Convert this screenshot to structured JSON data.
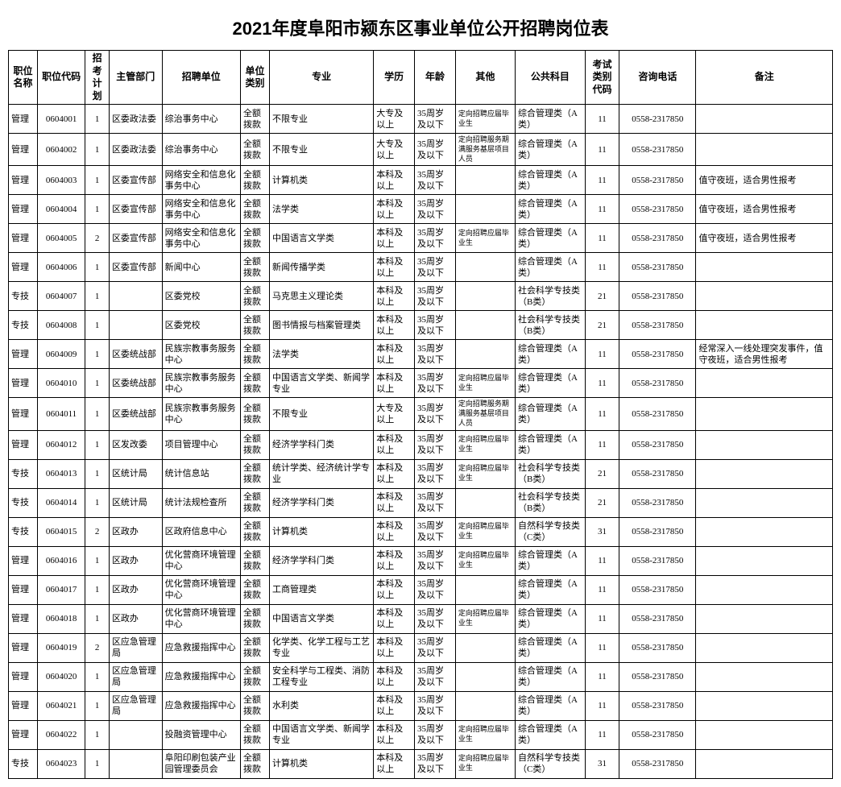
{
  "title": "2021年度阜阳市颍东区事业单位公开招聘岗位表",
  "columns": [
    "职位名称",
    "职位代码",
    "招考计划",
    "主管部门",
    "招聘单位",
    "单位类别",
    "专业",
    "学历",
    "年龄",
    "其他",
    "公共科目",
    "考试类别代码",
    "咨询电话",
    "备注"
  ],
  "col_widths": {
    "职位名称": 34,
    "职位代码": 56,
    "招考计划": 28,
    "主管部门": 62,
    "招聘单位": 92,
    "单位类别": 34,
    "专业": 122,
    "学历": 48,
    "年龄": 48,
    "其他": 70,
    "公共科目": 82,
    "考试类别代码": 40,
    "咨询电话": 90,
    "备注": 160
  },
  "rows": [
    {
      "name": "管理",
      "code": "0604001",
      "plan": "1",
      "dept": "区委政法委",
      "unit": "综治事务中心",
      "type": "全额拨款",
      "major": "不限专业",
      "edu": "大专及以上",
      "age": "35周岁及以下",
      "other": "定向招聘应届毕业生",
      "subj": "综合管理类（A类）",
      "exam": "11",
      "phone": "0558-2317850",
      "remark": ""
    },
    {
      "name": "管理",
      "code": "0604002",
      "plan": "1",
      "dept": "区委政法委",
      "unit": "综治事务中心",
      "type": "全额拨款",
      "major": "不限专业",
      "edu": "大专及以上",
      "age": "35周岁及以下",
      "other": "定向招聘服务期满服务基层项目人员",
      "subj": "综合管理类（A类）",
      "exam": "11",
      "phone": "0558-2317850",
      "remark": ""
    },
    {
      "name": "管理",
      "code": "0604003",
      "plan": "1",
      "dept": "区委宣传部",
      "unit": "网络安全和信息化事务中心",
      "type": "全额拨款",
      "major": "计算机类",
      "edu": "本科及以上",
      "age": "35周岁及以下",
      "other": "",
      "subj": "综合管理类（A类）",
      "exam": "11",
      "phone": "0558-2317850",
      "remark": "值守夜班，适合男性报考"
    },
    {
      "name": "管理",
      "code": "0604004",
      "plan": "1",
      "dept": "区委宣传部",
      "unit": "网络安全和信息化事务中心",
      "type": "全额拨款",
      "major": "法学类",
      "edu": "本科及以上",
      "age": "35周岁及以下",
      "other": "",
      "subj": "综合管理类（A类）",
      "exam": "11",
      "phone": "0558-2317850",
      "remark": "值守夜班，适合男性报考"
    },
    {
      "name": "管理",
      "code": "0604005",
      "plan": "2",
      "dept": "区委宣传部",
      "unit": "网络安全和信息化事务中心",
      "type": "全额拨款",
      "major": "中国语言文学类",
      "edu": "本科及以上",
      "age": "35周岁及以下",
      "other": "定向招聘应届毕业生",
      "subj": "综合管理类（A类）",
      "exam": "11",
      "phone": "0558-2317850",
      "remark": "值守夜班，适合男性报考"
    },
    {
      "name": "管理",
      "code": "0604006",
      "plan": "1",
      "dept": "区委宣传部",
      "unit": "新闻中心",
      "type": "全额拨款",
      "major": "新闻传播学类",
      "edu": "本科及以上",
      "age": "35周岁及以下",
      "other": "",
      "subj": "综合管理类（A类）",
      "exam": "11",
      "phone": "0558-2317850",
      "remark": ""
    },
    {
      "name": "专技",
      "code": "0604007",
      "plan": "1",
      "dept": "",
      "unit": "区委党校",
      "type": "全额拨款",
      "major": "马克思主义理论类",
      "edu": "本科及以上",
      "age": "35周岁及以下",
      "other": "",
      "subj": "社会科学专技类（B类）",
      "exam": "21",
      "phone": "0558-2317850",
      "remark": ""
    },
    {
      "name": "专技",
      "code": "0604008",
      "plan": "1",
      "dept": "",
      "unit": "区委党校",
      "type": "全额拨款",
      "major": "图书情报与档案管理类",
      "edu": "本科及以上",
      "age": "35周岁及以下",
      "other": "",
      "subj": "社会科学专技类（B类）",
      "exam": "21",
      "phone": "0558-2317850",
      "remark": ""
    },
    {
      "name": "管理",
      "code": "0604009",
      "plan": "1",
      "dept": "区委统战部",
      "unit": "民族宗教事务服务中心",
      "type": "全额拨款",
      "major": "法学类",
      "edu": "本科及以上",
      "age": "35周岁及以下",
      "other": "",
      "subj": "综合管理类（A类）",
      "exam": "11",
      "phone": "0558-2317850",
      "remark": "经常深入一线处理突发事件，值守夜班，适合男性报考"
    },
    {
      "name": "管理",
      "code": "0604010",
      "plan": "1",
      "dept": "区委统战部",
      "unit": "民族宗教事务服务中心",
      "type": "全额拨款",
      "major": "中国语言文学类、新闻学专业",
      "edu": "本科及以上",
      "age": "35周岁及以下",
      "other": "定向招聘应届毕业生",
      "subj": "综合管理类（A类）",
      "exam": "11",
      "phone": "0558-2317850",
      "remark": ""
    },
    {
      "name": "管理",
      "code": "0604011",
      "plan": "1",
      "dept": "区委统战部",
      "unit": "民族宗教事务服务中心",
      "type": "全额拨款",
      "major": "不限专业",
      "edu": "大专及以上",
      "age": "35周岁及以下",
      "other": "定向招聘服务期满服务基层项目人员",
      "subj": "综合管理类（A类）",
      "exam": "11",
      "phone": "0558-2317850",
      "remark": ""
    },
    {
      "name": "管理",
      "code": "0604012",
      "plan": "1",
      "dept": "区发改委",
      "unit": "项目管理中心",
      "type": "全额拨款",
      "major": "经济学学科门类",
      "edu": "本科及以上",
      "age": "35周岁及以下",
      "other": "定向招聘应届毕业生",
      "subj": "综合管理类（A类）",
      "exam": "11",
      "phone": "0558-2317850",
      "remark": ""
    },
    {
      "name": "专技",
      "code": "0604013",
      "plan": "1",
      "dept": "区统计局",
      "unit": "统计信息站",
      "type": "全额拨款",
      "major": "统计学类、经济统计学专业",
      "edu": "本科及以上",
      "age": "35周岁及以下",
      "other": "定向招聘应届毕业生",
      "subj": "社会科学专技类（B类）",
      "exam": "21",
      "phone": "0558-2317850",
      "remark": ""
    },
    {
      "name": "专技",
      "code": "0604014",
      "plan": "1",
      "dept": "区统计局",
      "unit": "统计法规检查所",
      "type": "全额拨款",
      "major": "经济学学科门类",
      "edu": "本科及以上",
      "age": "35周岁及以下",
      "other": "",
      "subj": "社会科学专技类（B类）",
      "exam": "21",
      "phone": "0558-2317850",
      "remark": ""
    },
    {
      "name": "专技",
      "code": "0604015",
      "plan": "2",
      "dept": "区政办",
      "unit": "区政府信息中心",
      "type": "全额拨款",
      "major": "计算机类",
      "edu": "本科及以上",
      "age": "35周岁及以下",
      "other": "定向招聘应届毕业生",
      "subj": "自然科学专技类（C类）",
      "exam": "31",
      "phone": "0558-2317850",
      "remark": ""
    },
    {
      "name": "管理",
      "code": "0604016",
      "plan": "1",
      "dept": "区政办",
      "unit": "优化营商环境管理中心",
      "type": "全额拨款",
      "major": "经济学学科门类",
      "edu": "本科及以上",
      "age": "35周岁及以下",
      "other": "定向招聘应届毕业生",
      "subj": "综合管理类（A类）",
      "exam": "11",
      "phone": "0558-2317850",
      "remark": ""
    },
    {
      "name": "管理",
      "code": "0604017",
      "plan": "1",
      "dept": "区政办",
      "unit": "优化营商环境管理中心",
      "type": "全额拨款",
      "major": "工商管理类",
      "edu": "本科及以上",
      "age": "35周岁及以下",
      "other": "",
      "subj": "综合管理类（A类）",
      "exam": "11",
      "phone": "0558-2317850",
      "remark": ""
    },
    {
      "name": "管理",
      "code": "0604018",
      "plan": "1",
      "dept": "区政办",
      "unit": "优化营商环境管理中心",
      "type": "全额拨款",
      "major": "中国语言文学类",
      "edu": "本科及以上",
      "age": "35周岁及以下",
      "other": "定向招聘应届毕业生",
      "subj": "综合管理类（A类）",
      "exam": "11",
      "phone": "0558-2317850",
      "remark": ""
    },
    {
      "name": "管理",
      "code": "0604019",
      "plan": "2",
      "dept": "区应急管理局",
      "unit": "应急救援指挥中心",
      "type": "全额拨款",
      "major": "化学类、化学工程与工艺专业",
      "edu": "本科及以上",
      "age": "35周岁及以下",
      "other": "",
      "subj": "综合管理类（A类）",
      "exam": "11",
      "phone": "0558-2317850",
      "remark": ""
    },
    {
      "name": "管理",
      "code": "0604020",
      "plan": "1",
      "dept": "区应急管理局",
      "unit": "应急救援指挥中心",
      "type": "全额拨款",
      "major": "安全科学与工程类、消防工程专业",
      "edu": "本科及以上",
      "age": "35周岁及以下",
      "other": "",
      "subj": "综合管理类（A类）",
      "exam": "11",
      "phone": "0558-2317850",
      "remark": ""
    },
    {
      "name": "管理",
      "code": "0604021",
      "plan": "1",
      "dept": "区应急管理局",
      "unit": "应急救援指挥中心",
      "type": "全额拨款",
      "major": "水利类",
      "edu": "本科及以上",
      "age": "35周岁及以下",
      "other": "",
      "subj": "综合管理类（A类）",
      "exam": "11",
      "phone": "0558-2317850",
      "remark": ""
    },
    {
      "name": "管理",
      "code": "0604022",
      "plan": "1",
      "dept": "",
      "unit": "投融资管理中心",
      "type": "全额拨款",
      "major": "中国语言文学类、新闻学专业",
      "edu": "本科及以上",
      "age": "35周岁及以下",
      "other": "定向招聘应届毕业生",
      "subj": "综合管理类（A类）",
      "exam": "11",
      "phone": "0558-2317850",
      "remark": ""
    },
    {
      "name": "专技",
      "code": "0604023",
      "plan": "1",
      "dept": "",
      "unit": "阜阳印刷包装产业园管理委员会",
      "type": "全额拨款",
      "major": "计算机类",
      "edu": "本科及以上",
      "age": "35周岁及以下",
      "other": "定向招聘应届毕业生",
      "subj": "自然科学专技类（C类）",
      "exam": "31",
      "phone": "0558-2317850",
      "remark": ""
    }
  ],
  "style": {
    "background_color": "#ffffff",
    "border_color": "#000000",
    "title_fontsize": 22,
    "header_fontsize": 12,
    "cell_fontsize": 11,
    "small_fontsize": 9
  }
}
